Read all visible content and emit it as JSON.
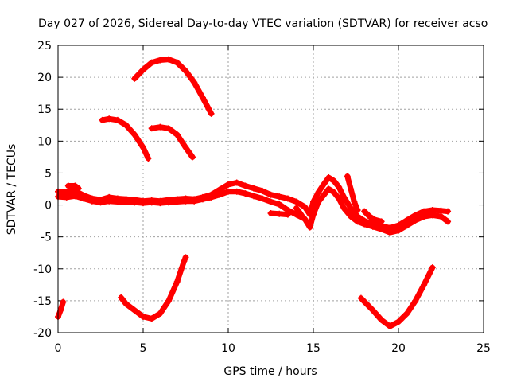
{
  "chart_data": {
    "type": "scatter",
    "title": "Day 027 of 2026, Sidereal Day-to-day VTEC variation (SDTVAR) for receiver acso",
    "xlabel": "GPS time / hours",
    "ylabel": "SDTVAR / TECUs",
    "xlim": [
      0,
      25
    ],
    "ylim": [
      -20,
      25
    ],
    "xticks": [
      0,
      5,
      10,
      15,
      20,
      25
    ],
    "yticks": [
      -20,
      -15,
      -10,
      -5,
      0,
      5,
      10,
      15,
      20,
      25
    ],
    "grid": true,
    "marker": "+",
    "color": "#ff0000",
    "series": [
      {
        "name": "main-band-upper",
        "points": [
          [
            0,
            2.1
          ],
          [
            0.5,
            2.0
          ],
          [
            1,
            2.2
          ],
          [
            1.5,
            1.5
          ],
          [
            2,
            1.0
          ],
          [
            2.5,
            0.8
          ],
          [
            3,
            1.2
          ],
          [
            3.5,
            1.0
          ],
          [
            4,
            0.9
          ],
          [
            4.5,
            0.8
          ],
          [
            5,
            0.6
          ],
          [
            5.5,
            0.7
          ],
          [
            6,
            0.6
          ],
          [
            6.5,
            0.8
          ],
          [
            7,
            0.9
          ],
          [
            7.5,
            1.0
          ],
          [
            8,
            0.9
          ],
          [
            8.5,
            1.2
          ],
          [
            9,
            1.6
          ],
          [
            9.5,
            2.4
          ],
          [
            10,
            3.2
          ],
          [
            10.5,
            3.5
          ],
          [
            11,
            3.0
          ],
          [
            11.5,
            2.6
          ],
          [
            12,
            2.2
          ],
          [
            12.5,
            1.6
          ],
          [
            13,
            1.3
          ],
          [
            13.5,
            1.0
          ],
          [
            14,
            0.5
          ],
          [
            14.5,
            -0.3
          ],
          [
            14.8,
            -1.5
          ],
          [
            15,
            0.5
          ],
          [
            15.3,
            2.0
          ],
          [
            15.6,
            3.2
          ],
          [
            15.9,
            4.3
          ],
          [
            16.2,
            3.8
          ],
          [
            16.5,
            2.8
          ],
          [
            16.8,
            1.2
          ],
          [
            17.2,
            -0.5
          ],
          [
            17.6,
            -1.8
          ],
          [
            18,
            -2.5
          ],
          [
            18.5,
            -3.0
          ],
          [
            19,
            -3.3
          ],
          [
            19.5,
            -3.6
          ],
          [
            20,
            -3.2
          ],
          [
            20.5,
            -2.4
          ],
          [
            21,
            -1.6
          ],
          [
            21.5,
            -1.0
          ],
          [
            22,
            -0.8
          ],
          [
            22.5,
            -0.9
          ],
          [
            22.9,
            -1.0
          ]
        ]
      },
      {
        "name": "main-band-lower",
        "points": [
          [
            0,
            1.3
          ],
          [
            0.5,
            1.2
          ],
          [
            1,
            1.4
          ],
          [
            1.5,
            1.0
          ],
          [
            2,
            0.6
          ],
          [
            2.5,
            0.4
          ],
          [
            3,
            0.6
          ],
          [
            3.5,
            0.5
          ],
          [
            4,
            0.5
          ],
          [
            4.5,
            0.4
          ],
          [
            5,
            0.3
          ],
          [
            5.5,
            0.4
          ],
          [
            6,
            0.3
          ],
          [
            6.5,
            0.4
          ],
          [
            7,
            0.5
          ],
          [
            7.5,
            0.6
          ],
          [
            8,
            0.6
          ],
          [
            8.5,
            0.9
          ],
          [
            9,
            1.2
          ],
          [
            9.5,
            1.6
          ],
          [
            10,
            2.1
          ],
          [
            10.5,
            2.1
          ],
          [
            11,
            1.8
          ],
          [
            11.5,
            1.4
          ],
          [
            12,
            1.0
          ],
          [
            12.5,
            0.5
          ],
          [
            13,
            0.1
          ],
          [
            13.5,
            -0.8
          ],
          [
            14,
            -1.5
          ],
          [
            14.5,
            -2.2
          ],
          [
            14.8,
            -3.5
          ],
          [
            15,
            -1.5
          ],
          [
            15.3,
            0.5
          ],
          [
            15.6,
            1.5
          ],
          [
            15.9,
            2.5
          ],
          [
            16.2,
            2.0
          ],
          [
            16.5,
            1.0
          ],
          [
            16.8,
            -0.5
          ],
          [
            17.2,
            -1.8
          ],
          [
            17.6,
            -2.6
          ],
          [
            18,
            -3.0
          ],
          [
            18.5,
            -3.4
          ],
          [
            19,
            -3.8
          ],
          [
            19.5,
            -4.3
          ],
          [
            20,
            -4.0
          ],
          [
            20.5,
            -3.2
          ],
          [
            21,
            -2.4
          ],
          [
            21.5,
            -1.8
          ],
          [
            22,
            -1.6
          ],
          [
            22.5,
            -1.8
          ],
          [
            22.9,
            -2.6
          ]
        ]
      },
      {
        "name": "arc-upper-top",
        "points": [
          [
            4.5,
            19.8
          ],
          [
            5,
            21.2
          ],
          [
            5.5,
            22.3
          ],
          [
            6,
            22.7
          ],
          [
            6.5,
            22.8
          ],
          [
            7,
            22.3
          ],
          [
            7.5,
            21.0
          ],
          [
            8,
            19.2
          ],
          [
            8.5,
            16.8
          ],
          [
            9,
            14.3
          ]
        ]
      },
      {
        "name": "arc-upper-left",
        "points": [
          [
            2.6,
            13.3
          ],
          [
            3,
            13.5
          ],
          [
            3.5,
            13.3
          ],
          [
            4,
            12.5
          ],
          [
            4.5,
            11.0
          ],
          [
            5,
            9.0
          ],
          [
            5.3,
            7.3
          ]
        ]
      },
      {
        "name": "arc-upper-mid",
        "points": [
          [
            5.5,
            12.0
          ],
          [
            6,
            12.2
          ],
          [
            6.5,
            12.0
          ],
          [
            7,
            11.0
          ],
          [
            7.5,
            9.0
          ],
          [
            7.9,
            7.5
          ]
        ]
      },
      {
        "name": "arc-low-left",
        "points": [
          [
            3.7,
            -14.5
          ],
          [
            4,
            -15.5
          ],
          [
            4.5,
            -16.5
          ],
          [
            5,
            -17.5
          ],
          [
            5.5,
            -17.8
          ],
          [
            6,
            -17.0
          ],
          [
            6.5,
            -15.0
          ],
          [
            7,
            -12.0
          ],
          [
            7.4,
            -8.8
          ],
          [
            7.5,
            -8.2
          ]
        ]
      },
      {
        "name": "arc-low-right",
        "points": [
          [
            17.8,
            -14.6
          ],
          [
            18.5,
            -16.5
          ],
          [
            19,
            -18.0
          ],
          [
            19.5,
            -19.0
          ],
          [
            20,
            -18.3
          ],
          [
            20.5,
            -17.0
          ],
          [
            21,
            -15.0
          ],
          [
            21.5,
            -12.5
          ],
          [
            22,
            -9.8
          ]
        ]
      },
      {
        "name": "stub-start",
        "points": [
          [
            0,
            -17.5
          ],
          [
            0.15,
            -16.5
          ],
          [
            0.3,
            -15.2
          ]
        ]
      },
      {
        "name": "fragment-a",
        "points": [
          [
            12.5,
            -1.3
          ],
          [
            13,
            -1.4
          ],
          [
            13.5,
            -1.5
          ]
        ]
      },
      {
        "name": "fragment-b",
        "points": [
          [
            14,
            -0.5
          ],
          [
            14.2,
            -1.2
          ],
          [
            14.4,
            -2.0
          ]
        ]
      },
      {
        "name": "fragment-c",
        "points": [
          [
            17,
            4.5
          ],
          [
            17.2,
            2.5
          ],
          [
            17.4,
            0.5
          ],
          [
            17.6,
            -0.8
          ]
        ]
      },
      {
        "name": "fragment-d",
        "points": [
          [
            18,
            -1.0
          ],
          [
            18.3,
            -1.8
          ],
          [
            18.6,
            -2.3
          ],
          [
            19,
            -2.6
          ]
        ]
      },
      {
        "name": "fragment-e",
        "points": [
          [
            0.6,
            3.0
          ],
          [
            1.0,
            3.0
          ],
          [
            1.2,
            2.6
          ]
        ]
      }
    ]
  }
}
